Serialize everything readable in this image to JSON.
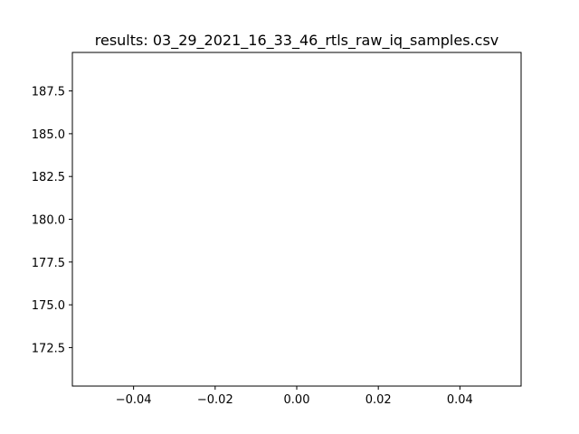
{
  "chart_data": {
    "type": "line",
    "title": "results: 03_29_2021_16_33_46_rtls_raw_iq_samples.csv",
    "xlabel": "",
    "ylabel": "",
    "xlim": [
      -0.055,
      0.055
    ],
    "ylim": [
      170.25,
      189.75
    ],
    "x_ticks": [
      -0.04,
      -0.02,
      0.0,
      0.02,
      0.04
    ],
    "x_tick_labels": [
      "−0.04",
      "−0.02",
      "0.00",
      "0.02",
      "0.04"
    ],
    "y_ticks": [
      172.5,
      175.0,
      177.5,
      180.0,
      182.5,
      185.0,
      187.5
    ],
    "y_tick_labels": [
      "172.5",
      "175.0",
      "177.5",
      "180.0",
      "182.5",
      "185.0",
      "187.5"
    ],
    "series": [],
    "grid": false,
    "legend": "none"
  }
}
